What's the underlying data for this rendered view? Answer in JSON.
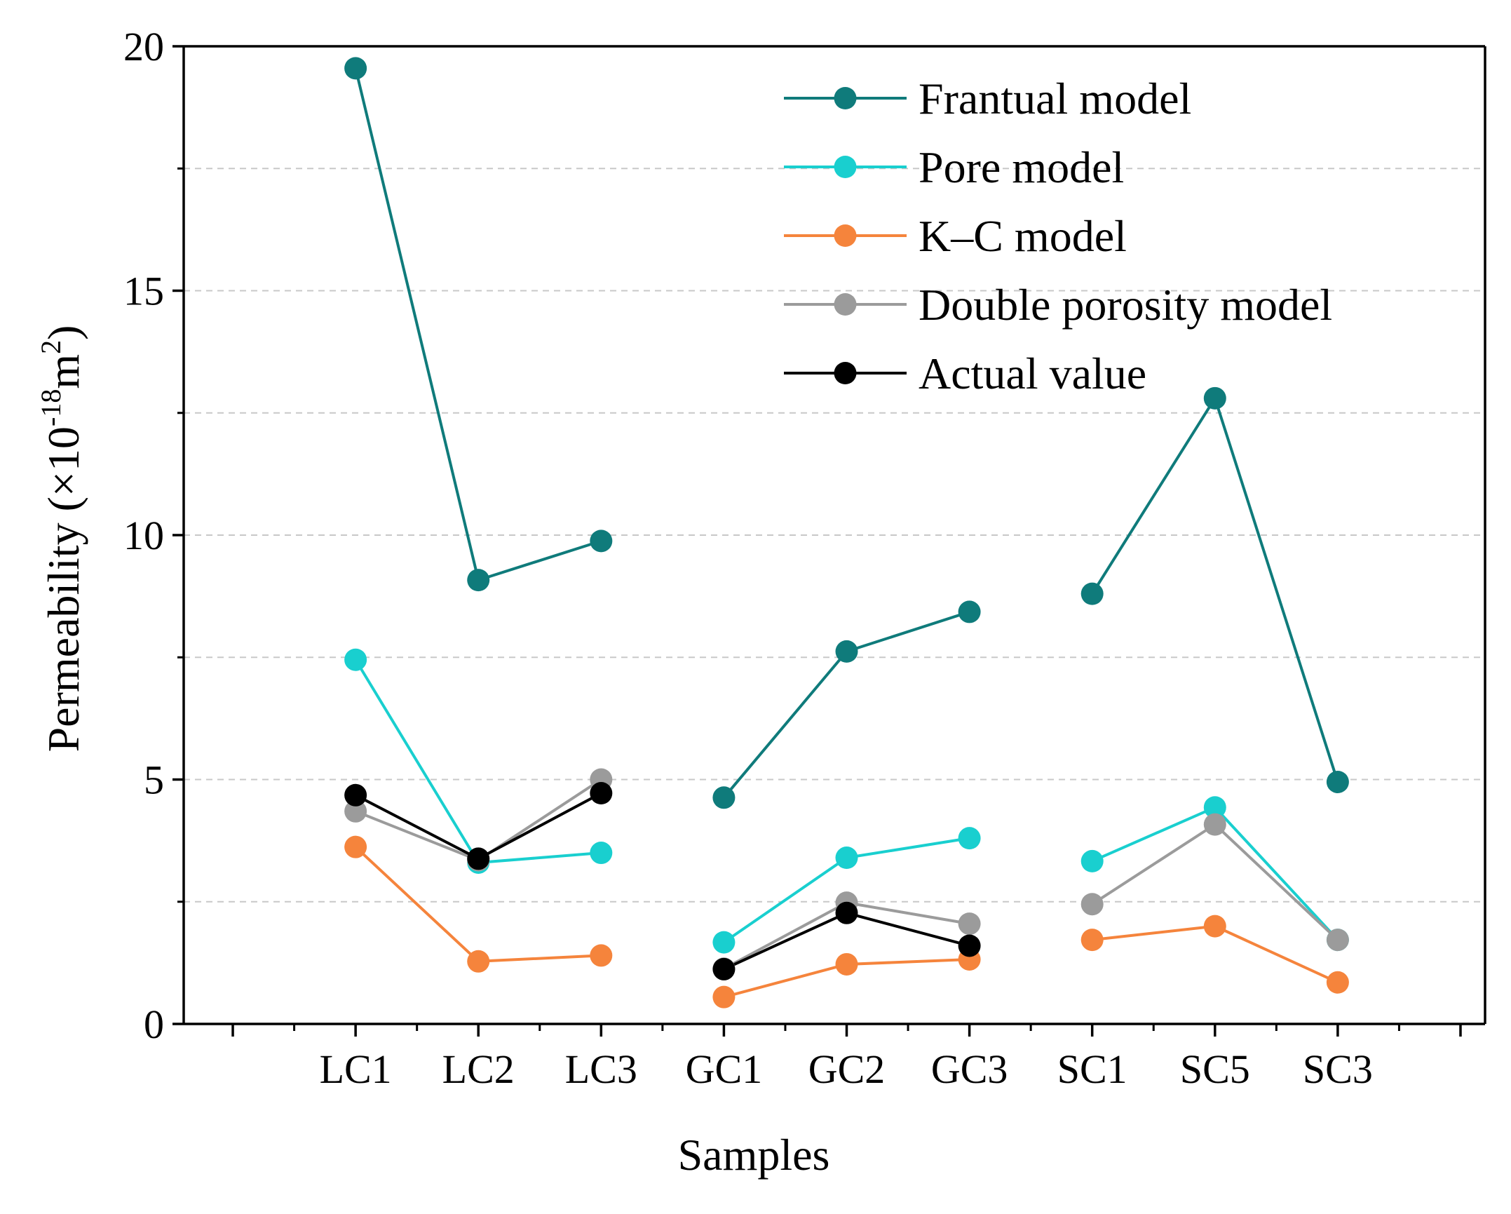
{
  "chart_data": {
    "type": "line",
    "title": "",
    "xlabel": "Samples",
    "ylabel": {
      "base": "Permeability (×10",
      "exponent": "-18",
      "unit": "m",
      "unit_exponent": "2",
      "close": ")"
    },
    "categories": [
      "LC1",
      "LC2",
      "LC3",
      "GC1",
      "GC2",
      "GC3",
      "SC1",
      "SC5",
      "SC3"
    ],
    "x_positions": [
      1,
      2,
      3,
      4,
      5,
      6,
      7,
      8,
      9
    ],
    "xlim": [
      -0.4,
      10.2
    ],
    "ylim": [
      0,
      20
    ],
    "y_ticks": [
      0,
      5,
      10,
      15,
      20
    ],
    "y_tick_labels": [
      "0",
      "5",
      "10",
      "15",
      "20"
    ],
    "grid_lines": [
      2.5,
      5,
      7.5,
      10,
      12.5,
      15,
      17.5
    ],
    "legend_position": "top-right",
    "series": [
      {
        "name": "Frantual model",
        "color": "#0f7b7b",
        "groups": [
          [
            19.55,
            9.08,
            9.88
          ],
          [
            4.63,
            7.62,
            8.43
          ],
          [
            8.8,
            12.8,
            4.95
          ]
        ]
      },
      {
        "name": "Pore model",
        "color": "#19cfcf",
        "groups": [
          [
            7.45,
            3.3,
            3.5
          ],
          [
            1.67,
            3.4,
            3.8
          ],
          [
            3.33,
            4.43,
            1.72
          ]
        ]
      },
      {
        "name": "K–C model",
        "color": "#f5843c",
        "groups": [
          [
            3.62,
            1.28,
            1.4
          ],
          [
            0.55,
            1.22,
            1.32
          ],
          [
            1.72,
            2.0,
            0.85
          ]
        ]
      },
      {
        "name": "Double porosity model",
        "color": "#9b9b9b",
        "groups": [
          [
            4.35,
            3.35,
            5.0
          ],
          [
            1.13,
            2.48,
            2.05
          ],
          [
            2.45,
            4.08,
            1.72
          ]
        ]
      },
      {
        "name": "Actual value",
        "color": "#000000",
        "groups": [
          [
            4.68,
            3.38,
            4.72
          ],
          [
            1.12,
            2.27,
            1.6
          ],
          [
            null,
            null,
            null
          ]
        ]
      }
    ]
  }
}
